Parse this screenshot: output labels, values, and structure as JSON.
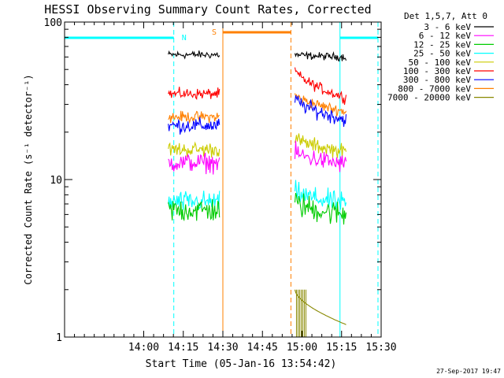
{
  "chart_data": {
    "type": "line",
    "title": "HESSI Observing Summary Count Rates, Corrected",
    "xlabel": "Start Time (05-Jan-16 13:54:42)",
    "ylabel": "Corrected Count Rate (s⁻¹ detector⁻¹)",
    "yscale": "log",
    "ylim": [
      1,
      100
    ],
    "xlim_minutes": [
      13.5,
      15.5
    ],
    "x_ticks": [
      {
        "label": "14:00",
        "t": 14.0
      },
      {
        "label": "14:15",
        "t": 14.25
      },
      {
        "label": "14:30",
        "t": 14.5
      },
      {
        "label": "14:45",
        "t": 14.75
      },
      {
        "label": "15:00",
        "t": 15.0
      },
      {
        "label": "15:15",
        "t": 15.25
      },
      {
        "label": "15:30",
        "t": 15.5
      }
    ],
    "y_ticks": [
      {
        "label": "1",
        "v": 1
      },
      {
        "label": "10",
        "v": 10
      },
      {
        "label": "100",
        "v": 100
      }
    ],
    "legend_header": "Det 1,5,7, Att 0",
    "legend_position": "right",
    "series": [
      {
        "name": "3 - 6 keV",
        "color": "#000000",
        "seg1": [
          62,
          62
        ],
        "seg2": [
          62,
          60
        ]
      },
      {
        "name": "6 - 12 keV",
        "color": "#ff00ff",
        "seg1": [
          12.8,
          12.8
        ],
        "seg2": [
          15,
          12.5
        ]
      },
      {
        "name": "12 - 25 keV",
        "color": "#00cc00",
        "seg1": [
          6.4,
          6.4
        ],
        "seg2": [
          7.2,
          6.0
        ]
      },
      {
        "name": "25 - 50 keV",
        "color": "#00ffff",
        "seg1": [
          7.2,
          7.2
        ],
        "seg2": [
          8.5,
          7.0
        ]
      },
      {
        "name": "50 - 100 keV",
        "color": "#cccc00",
        "seg1": [
          15.5,
          15.5
        ],
        "seg2": [
          18.5,
          15.0
        ]
      },
      {
        "name": "100 - 300 keV",
        "color": "#ff0000",
        "seg1": [
          35,
          35
        ],
        "seg2": [
          50,
          33
        ]
      },
      {
        "name": "300 - 800 keV",
        "color": "#0000ff",
        "seg1": [
          22,
          22
        ],
        "seg2": [
          33,
          24
        ]
      },
      {
        "name": "800 - 7000 keV",
        "color": "#ff8000",
        "seg1": [
          25,
          25
        ],
        "seg2": [
          35,
          27
        ]
      },
      {
        "name": "7000 - 20000 keV",
        "color": "#888800",
        "seg1": [
          1.0,
          1.0
        ],
        "seg2": [
          2.0,
          1.2
        ]
      }
    ],
    "data_segments": [
      {
        "start": 14.155,
        "end": 14.48
      },
      {
        "start": 14.955,
        "end": 15.28
      }
    ],
    "annotations": {
      "night_label": "N",
      "saa_label": "S",
      "night_color": "#00ffff",
      "saa_color": "#ff8000",
      "night_bars": [
        [
          13.5,
          14.19
        ],
        [
          15.24,
          15.48
        ]
      ],
      "saa_bar": [
        14.5,
        14.93
      ],
      "night_lines": [
        13.5,
        14.19,
        15.24,
        15.48
      ],
      "night_dashed": [
        14.19,
        15.48
      ],
      "saa_lines": [
        14.5,
        14.93
      ],
      "saa_dashed": [
        14.93
      ]
    },
    "grid": false
  },
  "footer": {
    "date": "27-Sep-2017 19:47"
  }
}
